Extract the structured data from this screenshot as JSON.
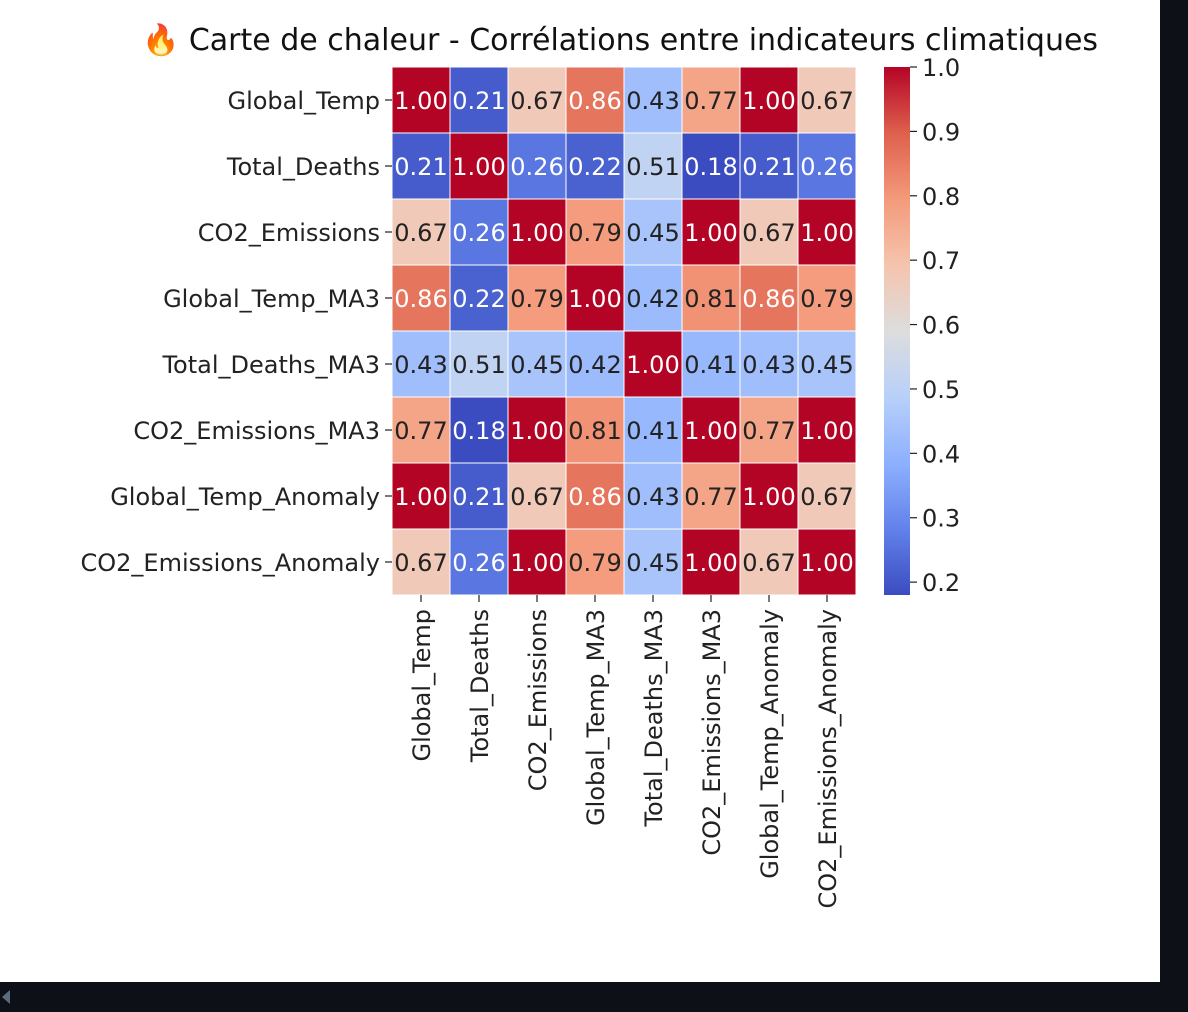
{
  "chart_data": {
    "type": "heatmap",
    "title": "🔥 Carte de chaleur - Corrélations entre indicateurs climatiques",
    "rows": [
      "Global_Temp",
      "Total_Deaths",
      "CO2_Emissions",
      "Global_Temp_MA3",
      "Total_Deaths_MA3",
      "CO2_Emissions_MA3",
      "Global_Temp_Anomaly",
      "CO2_Emissions_Anomaly"
    ],
    "columns": [
      "Global_Temp",
      "Total_Deaths",
      "CO2_Emissions",
      "Global_Temp_MA3",
      "Total_Deaths_MA3",
      "CO2_Emissions_MA3",
      "Global_Temp_Anomaly",
      "CO2_Emissions_Anomaly"
    ],
    "values": [
      [
        1.0,
        0.21,
        0.67,
        0.86,
        0.43,
        0.77,
        1.0,
        0.67
      ],
      [
        0.21,
        1.0,
        0.26,
        0.22,
        0.51,
        0.18,
        0.21,
        0.26
      ],
      [
        0.67,
        0.26,
        1.0,
        0.79,
        0.45,
        1.0,
        0.67,
        1.0
      ],
      [
        0.86,
        0.22,
        0.79,
        1.0,
        0.42,
        0.81,
        0.86,
        0.79
      ],
      [
        0.43,
        0.51,
        0.45,
        0.42,
        1.0,
        0.41,
        0.43,
        0.45
      ],
      [
        0.77,
        0.18,
        1.0,
        0.81,
        0.41,
        1.0,
        0.77,
        1.0
      ],
      [
        1.0,
        0.21,
        0.67,
        0.86,
        0.43,
        0.77,
        1.0,
        0.67
      ],
      [
        0.67,
        0.26,
        1.0,
        0.79,
        0.45,
        1.0,
        0.67,
        1.0
      ]
    ],
    "value_format": "2-decimals",
    "colormap": "coolwarm",
    "vmin": 0.18,
    "vmax": 1.0,
    "colorbar": {
      "ticks": [
        0.2,
        0.3,
        0.4,
        0.5,
        0.6,
        0.7,
        0.8,
        0.9,
        1.0
      ],
      "tick_labels": [
        "0.2",
        "0.3",
        "0.4",
        "0.5",
        "0.6",
        "0.7",
        "0.8",
        "0.9",
        "1.0"
      ],
      "placement": "right"
    },
    "annotate": true,
    "cell_border_color": "#ffffff"
  }
}
